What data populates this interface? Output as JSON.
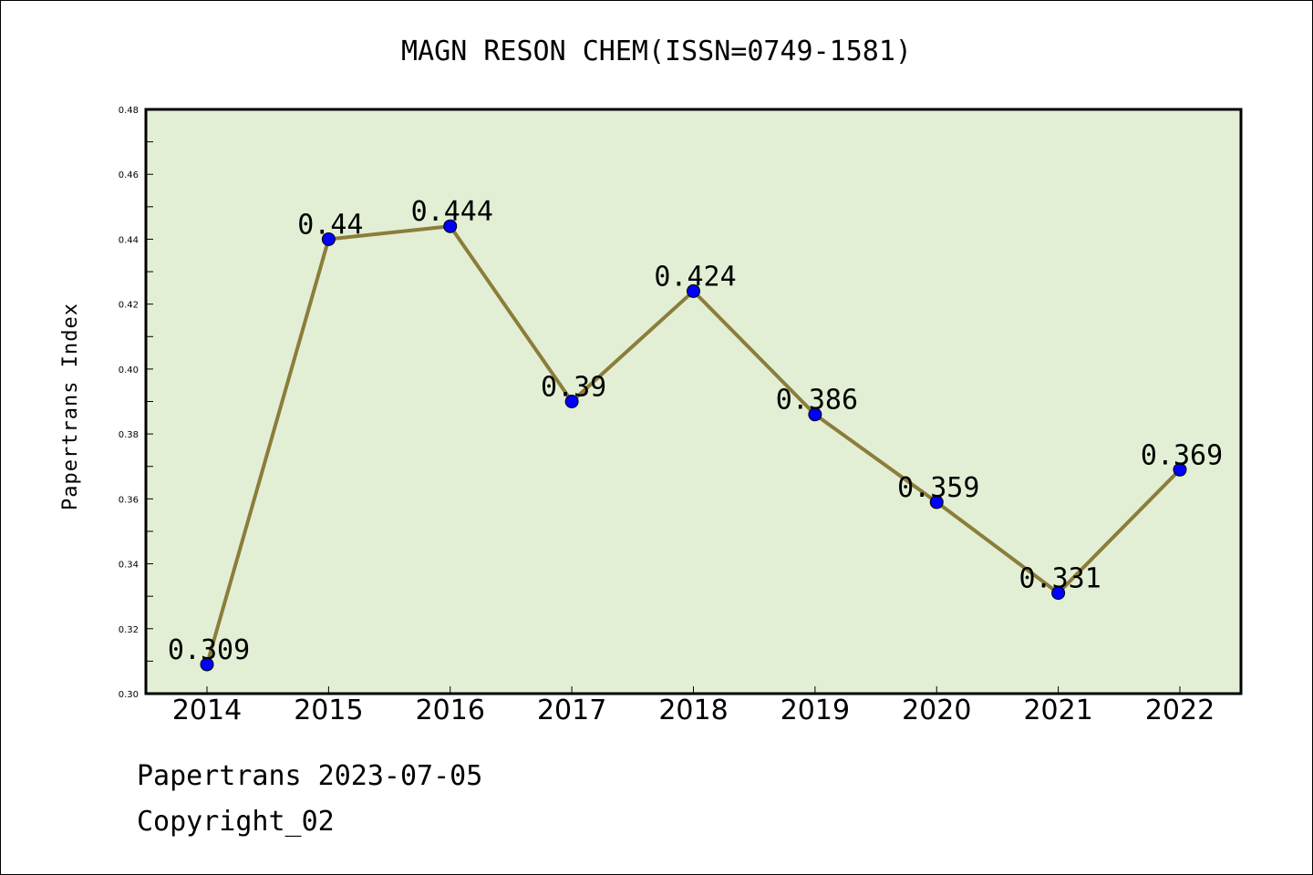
{
  "chart_data": {
    "type": "line",
    "title": "MAGN RESON CHEM(ISSN=0749-1581)",
    "xlabel": "",
    "ylabel": "Papertrans Index",
    "categories": [
      "2014",
      "2015",
      "2016",
      "2017",
      "2018",
      "2019",
      "2020",
      "2021",
      "2022"
    ],
    "values": [
      0.309,
      0.44,
      0.444,
      0.39,
      0.424,
      0.386,
      0.359,
      0.331,
      0.369
    ],
    "value_labels": [
      "0.309",
      "0.44",
      "0.444",
      "0.39",
      "0.424",
      "0.386",
      "0.359",
      "0.331",
      "0.369"
    ],
    "ylim": [
      0.3,
      0.48
    ],
    "yticks": [
      "0.30",
      "0.32",
      "0.34",
      "0.36",
      "0.38",
      "0.40",
      "0.42",
      "0.44",
      "0.46",
      "0.48"
    ],
    "grid": false,
    "legend": "none",
    "colors": {
      "plot_background": "#e2efd5",
      "line": "#8b7d3a",
      "marker": "#0000ff"
    }
  },
  "footer": {
    "line1": "Papertrans 2023-07-05",
    "line2": "Copyright_02"
  }
}
